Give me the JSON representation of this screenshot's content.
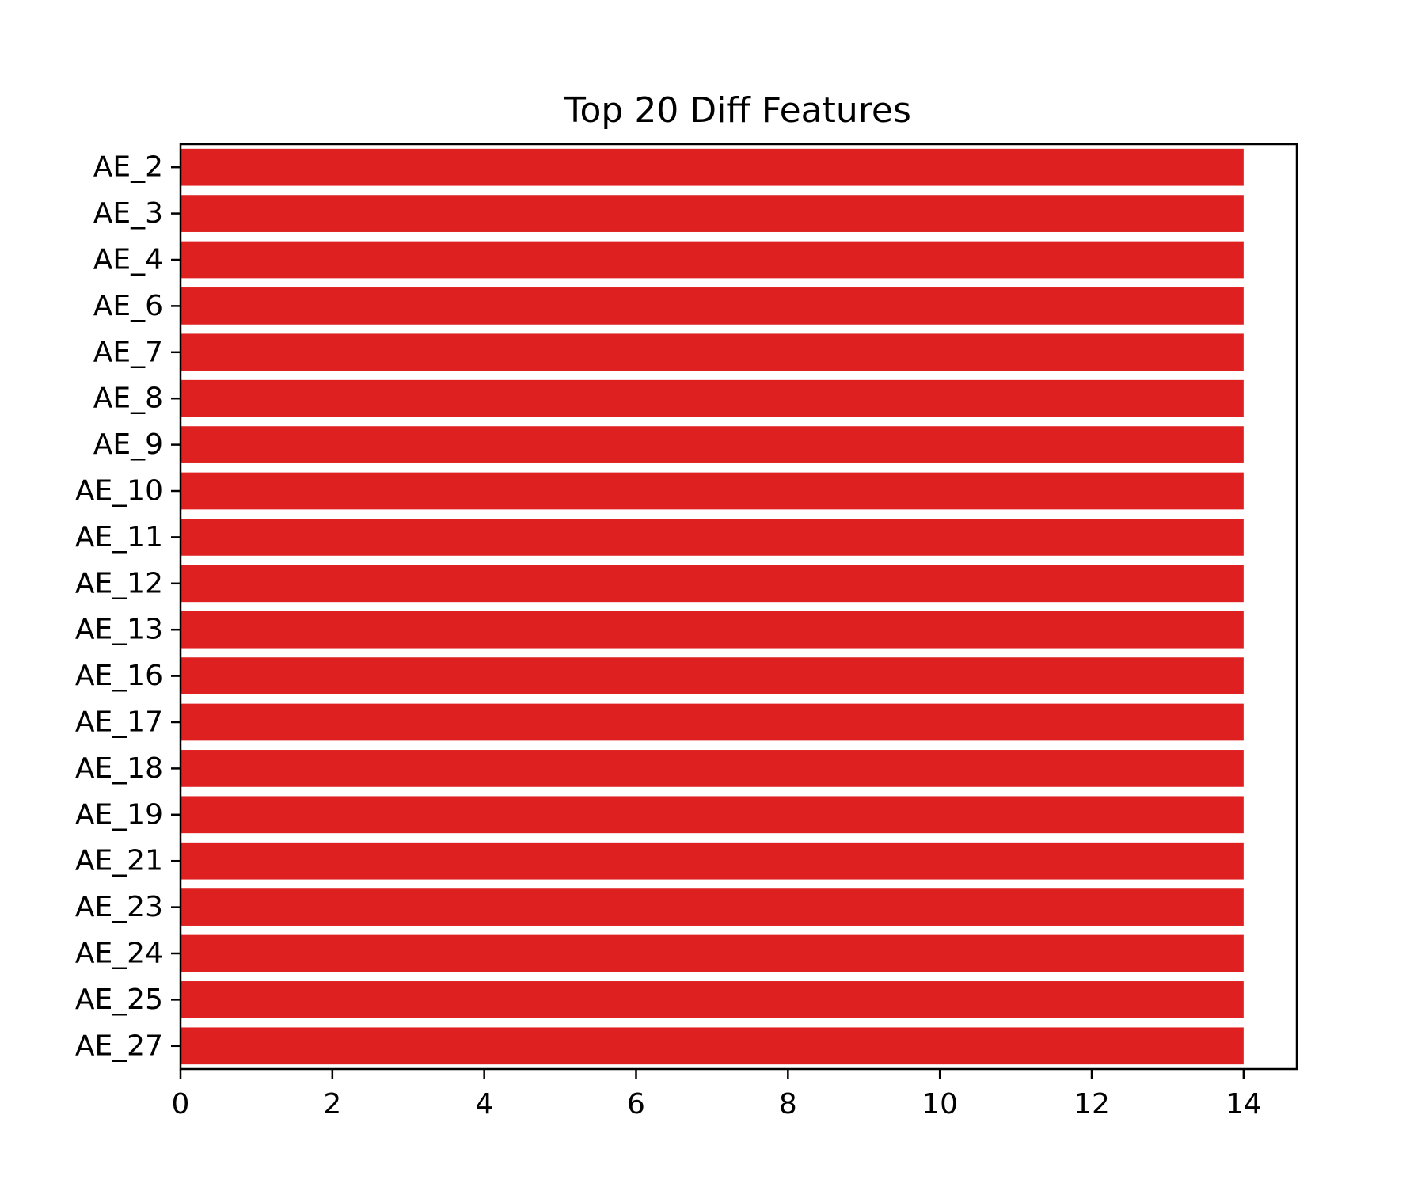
{
  "chart_data": {
    "type": "bar",
    "orientation": "horizontal",
    "title": "Top 20 Diff Features",
    "xlabel": "",
    "ylabel": "",
    "categories": [
      "AE_2",
      "AE_3",
      "AE_4",
      "AE_6",
      "AE_7",
      "AE_8",
      "AE_9",
      "AE_10",
      "AE_11",
      "AE_12",
      "AE_13",
      "AE_16",
      "AE_17",
      "AE_18",
      "AE_19",
      "AE_21",
      "AE_23",
      "AE_24",
      "AE_25",
      "AE_27"
    ],
    "values": [
      14,
      14,
      14,
      14,
      14,
      14,
      14,
      14,
      14,
      14,
      14,
      14,
      14,
      14,
      14,
      14,
      14,
      14,
      14,
      14
    ],
    "xlim": [
      0,
      14.7
    ],
    "xticks": [
      0,
      2,
      4,
      6,
      8,
      10,
      12,
      14
    ],
    "grid": false,
    "bar_color": "#df2020"
  }
}
